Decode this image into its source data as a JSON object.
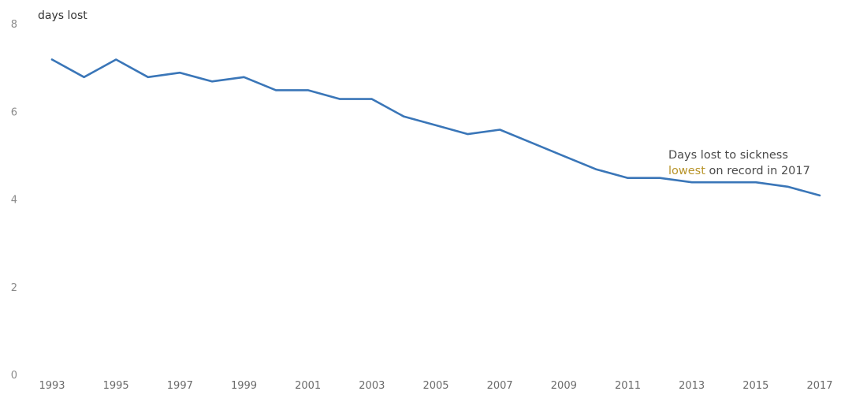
{
  "chart_data": {
    "type": "line",
    "ylabel": "days lost",
    "ylim": [
      0,
      8
    ],
    "yticks": [
      0,
      2,
      4,
      6,
      8
    ],
    "xticks": [
      1993,
      1995,
      1997,
      1999,
      2001,
      2003,
      2005,
      2007,
      2009,
      2011,
      2013,
      2015,
      2017
    ],
    "grid": false,
    "x": [
      1993,
      1994,
      1995,
      1996,
      1997,
      1998,
      1999,
      2000,
      2001,
      2002,
      2003,
      2004,
      2005,
      2006,
      2007,
      2008,
      2009,
      2010,
      2011,
      2012,
      2013,
      2014,
      2015,
      2016,
      2017
    ],
    "series": [
      {
        "values": [
          7.2,
          6.8,
          7.2,
          6.8,
          6.9,
          6.7,
          6.8,
          6.5,
          6.5,
          6.3,
          6.3,
          5.9,
          5.7,
          5.5,
          5.6,
          5.3,
          5.0,
          4.7,
          4.5,
          4.5,
          4.4,
          4.4,
          4.4,
          4.3,
          4.1
        ],
        "color": "#3a76b8"
      }
    ],
    "annotation": {
      "line1": "Days lost to sickness",
      "line2_highlight": "lowest",
      "line2_rest": " on record in 2017",
      "highlight_color": "#b8942a"
    }
  }
}
